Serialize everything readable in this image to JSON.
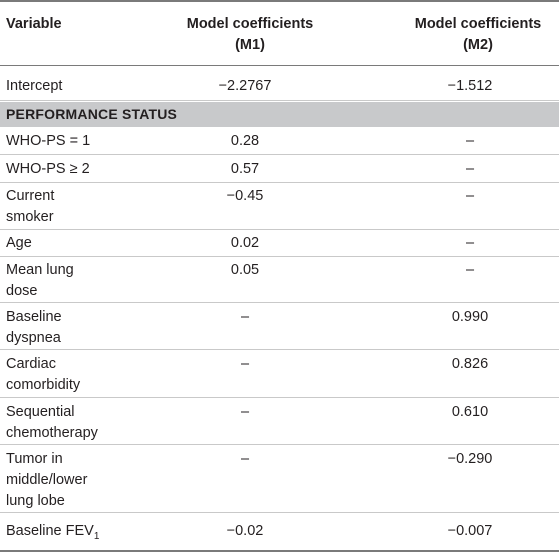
{
  "header": {
    "variable": "Variable",
    "m1_line1": "Model coefficients",
    "m1_line2": "(M1)",
    "m2_line1": "Model coefficients",
    "m2_line2": "(M2)"
  },
  "intercept": {
    "label": "Intercept",
    "m1": "−2.2767",
    "m2": "−1.512"
  },
  "section": {
    "label": "PERFORMANCE STATUS"
  },
  "rows": [
    {
      "line1": "WHO-PS = 1",
      "line2": "",
      "m1": "0.28",
      "m2": "–"
    },
    {
      "line1": "WHO-PS ≥ 2",
      "line2": "",
      "m1": "0.57",
      "m2": "–"
    },
    {
      "line1": "Current",
      "line2": "smoker",
      "m1": "−0.45",
      "m2": "–"
    },
    {
      "line1": "Age",
      "line2": "",
      "m1": "0.02",
      "m2": "–"
    },
    {
      "line1": "Mean lung",
      "line2": "dose",
      "m1": "0.05",
      "m2": "–"
    },
    {
      "line1": "Baseline",
      "line2": "dyspnea",
      "m1": "–",
      "m2": "0.990"
    },
    {
      "line1": "Cardiac",
      "line2": "comorbidity",
      "m1": "–",
      "m2": "0.826"
    },
    {
      "line1": "Sequential",
      "line2": "chemotherapy",
      "m1": "–",
      "m2": "0.610"
    },
    {
      "line1": "Tumor in",
      "line2": "middle/lower",
      "line3": "lung lobe",
      "m1": "–",
      "m2": "−0.290"
    }
  ],
  "fev": {
    "label": "Baseline FEV",
    "sub": "1",
    "m1": "−0.02",
    "m2": "−0.007"
  }
}
